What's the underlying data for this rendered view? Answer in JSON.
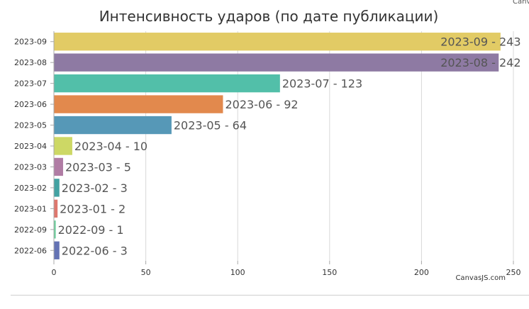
{
  "top_corner_text": "Canv",
  "chart_data": {
    "type": "bar",
    "orientation": "horizontal",
    "title": "Интенсивность ударов (по дате публикации)",
    "xlabel": "",
    "ylabel": "",
    "xlim": [
      0,
      250
    ],
    "x_ticks": [
      0,
      50,
      100,
      150,
      200,
      250
    ],
    "grid": "vertical",
    "credit": "CanvasJS.com",
    "categories": [
      "2023-09",
      "2023-08",
      "2023-07",
      "2023-06",
      "2023-05",
      "2023-04",
      "2023-03",
      "2023-02",
      "2023-01",
      "2022-09",
      "2022-06"
    ],
    "values": [
      243,
      242,
      123,
      92,
      64,
      10,
      5,
      3,
      2,
      1,
      3
    ],
    "data_labels": [
      "2023-09 - 243",
      "2023-08 - 242",
      "2023-07 - 123",
      "2023-06 - 92",
      "2023-05 - 64",
      "2023-04 - 10",
      "2023-03 - 5",
      "2023-02 - 3",
      "2023-01 - 2",
      "2022-09 - 1",
      "2022-06 - 3"
    ],
    "colors": [
      "#E2CB65",
      "#8E7AA3",
      "#52BFA9",
      "#E2894D",
      "#5698B7",
      "#CDD865",
      "#B07CA4",
      "#43A2A2",
      "#DE776E",
      "#6ACF9B",
      "#6473B4"
    ]
  }
}
